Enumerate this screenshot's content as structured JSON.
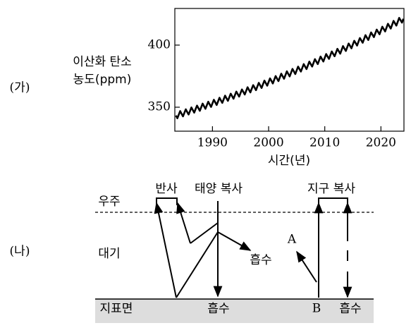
{
  "labels": {
    "ga": "(가)",
    "na": "(나)"
  },
  "chart_data": {
    "type": "line",
    "ylabel": [
      "이산화 탄소",
      "농도(ppm)"
    ],
    "xlabel": "시간(년)",
    "color": "#000000",
    "xlim": [
      1983.3,
      2024.1
    ],
    "ylim": [
      330.7,
      429.5
    ],
    "xticks": [
      1990,
      2000,
      2010,
      2020
    ],
    "yticks": [
      350,
      400
    ],
    "x": [
      1983.5,
      1983.75,
      1984,
      1984.25,
      1984.5,
      1984.75,
      1985,
      1985.25,
      1985.5,
      1985.75,
      1986,
      1986.25,
      1986.5,
      1986.75,
      1987,
      1987.25,
      1987.5,
      1987.75,
      1988,
      1988.25,
      1988.5,
      1988.75,
      1989,
      1989.25,
      1989.5,
      1989.75,
      1990,
      1990.25,
      1990.5,
      1990.75,
      1991,
      1991.25,
      1991.5,
      1991.75,
      1992,
      1992.25,
      1992.5,
      1992.75,
      1993,
      1993.25,
      1993.5,
      1993.75,
      1994,
      1994.25,
      1994.5,
      1994.75,
      1995,
      1995.25,
      1995.5,
      1995.75,
      1996,
      1996.25,
      1996.5,
      1996.75,
      1997,
      1997.25,
      1997.5,
      1997.75,
      1998,
      1998.25,
      1998.5,
      1998.75,
      1999,
      1999.25,
      1999.5,
      1999.75,
      2000,
      2000.25,
      2000.5,
      2000.75,
      2001,
      2001.25,
      2001.5,
      2001.75,
      2002,
      2002.25,
      2002.5,
      2002.75,
      2003,
      2003.25,
      2003.5,
      2003.75,
      2004,
      2004.25,
      2004.5,
      2004.75,
      2005,
      2005.25,
      2005.5,
      2005.75,
      2006,
      2006.25,
      2006.5,
      2006.75,
      2007,
      2007.25,
      2007.5,
      2007.75,
      2008,
      2008.25,
      2008.5,
      2008.75,
      2009,
      2009.25,
      2009.5,
      2009.75,
      2010,
      2010.25,
      2010.5,
      2010.75,
      2011,
      2011.25,
      2011.5,
      2011.75,
      2012,
      2012.25,
      2012.5,
      2012.75,
      2013,
      2013.25,
      2013.5,
      2013.75,
      2014,
      2014.25,
      2014.5,
      2014.75,
      2015,
      2015.25,
      2015.5,
      2015.75,
      2016,
      2016.25,
      2016.5,
      2016.75,
      2017,
      2017.25,
      2017.5,
      2017.75,
      2018,
      2018.25,
      2018.5,
      2018.75,
      2019,
      2019.25,
      2019.5,
      2019.75,
      2020,
      2020.25,
      2020.5,
      2020.75,
      2021,
      2021.25,
      2021.5,
      2021.75,
      2022,
      2022.25,
      2022.5,
      2022.75,
      2023,
      2023.25,
      2023.5,
      2023.75,
      2024
    ],
    "values": [
      343.3,
      341.1,
      344.0,
      346.9,
      344.7,
      342.6,
      345.5,
      348.3,
      346.2,
      344.1,
      346.9,
      349.8,
      347.7,
      345.6,
      348.5,
      351.3,
      349.2,
      347.1,
      350.0,
      352.9,
      350.8,
      348.7,
      351.6,
      354.4,
      352.3,
      350.2,
      353.1,
      356.0,
      353.9,
      351.8,
      354.7,
      357.6,
      355.5,
      353.5,
      356.4,
      359.3,
      357.2,
      355.1,
      358.0,
      360.9,
      358.9,
      356.8,
      359.7,
      362.6,
      360.5,
      358.5,
      361.4,
      364.3,
      362.3,
      360.2,
      363.1,
      366.1,
      364.0,
      361.9,
      364.9,
      367.8,
      365.8,
      363.7,
      366.7,
      369.6,
      367.5,
      365.5,
      368.5,
      371.4,
      369.4,
      367.3,
      370.3,
      373.2,
      371.2,
      369.1,
      372.1,
      375.1,
      373.0,
      371.0,
      374.0,
      377.0,
      374.9,
      372.9,
      375.9,
      378.9,
      376.8,
      374.8,
      377.8,
      380.8,
      378.8,
      376.7,
      379.7,
      382.7,
      380.7,
      378.7,
      381.7,
      384.7,
      382.7,
      380.7,
      383.7,
      386.7,
      384.7,
      382.7,
      385.7,
      388.7,
      386.7,
      384.7,
      387.8,
      390.8,
      388.8,
      386.8,
      389.8,
      392.8,
      390.8,
      388.9,
      391.9,
      394.9,
      392.9,
      391.0,
      394.0,
      397.0,
      395.1,
      393.1,
      396.1,
      399.2,
      397.2,
      395.3,
      398.3,
      401.3,
      399.4,
      397.4,
      400.5,
      403.5,
      401.6,
      399.6,
      402.7,
      405.7,
      403.8,
      401.9,
      404.9,
      408.0,
      406.0,
      404.1,
      407.2,
      410.2,
      408.3,
      406.4,
      409.5,
      412.5,
      410.6,
      408.7,
      411.8,
      414.8,
      412.9,
      411.0,
      414.1,
      417.2,
      415.2,
      413.3,
      416.4,
      419.5,
      417.6,
      415.7,
      418.8,
      421.9,
      420.0,
      418.1,
      421.2
    ]
  },
  "diagram": {
    "space": "우주",
    "atmosphere": "대기",
    "surface": "지표면",
    "reflection": "반사",
    "solar_radiation": "태양 복사",
    "absorption_atmosphere": "흡수",
    "absorption_surface": "흡수",
    "terrestrial_radiation": "지구 복사",
    "absorption_b": "흡수",
    "a": "A",
    "b": "B"
  }
}
